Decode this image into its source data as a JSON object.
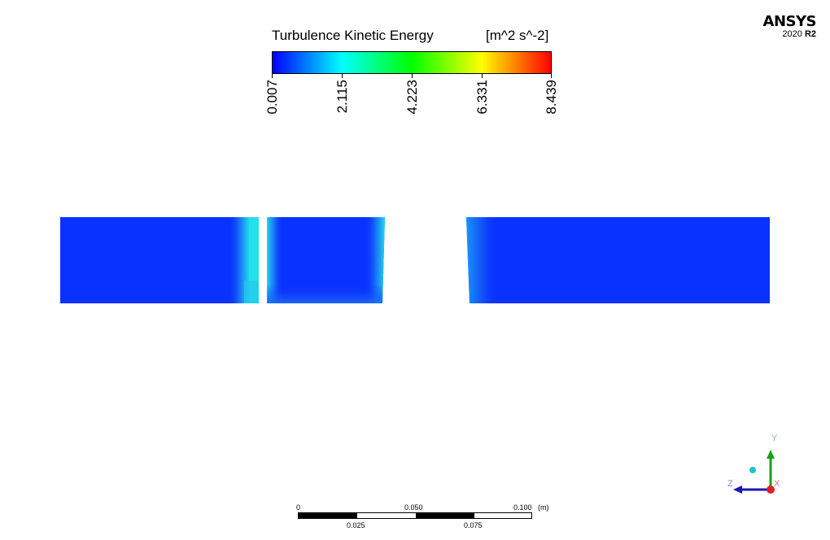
{
  "legend": {
    "title": "Turbulence Kinetic Energy",
    "unit": "[m^2 s^-2]",
    "ticks": [
      "0.007",
      "2.115",
      "4.223",
      "6.331",
      "8.439"
    ],
    "range": [
      0.007,
      8.439
    ],
    "colormap": [
      "#0000ff",
      "#00ffff",
      "#00ff00",
      "#ffff00",
      "#ff0000"
    ]
  },
  "logo": {
    "name": "ANSYS",
    "version": "2020",
    "release": "R2"
  },
  "contour": {
    "quantity": "Turbulence Kinetic Energy",
    "base_color": "#0a32ff",
    "highlight_color": "#20e6f0"
  },
  "scale_bar": {
    "top_labels": [
      "0",
      "0.050",
      "0.100"
    ],
    "unit": "(m)",
    "bottom_labels": [
      "0.025",
      "0.075"
    ]
  },
  "triad": {
    "x_label": "X",
    "y_label": "Y",
    "z_label": "Z",
    "x_color": "#e02020",
    "y_color": "#18a018",
    "z_color": "#1818b0"
  }
}
